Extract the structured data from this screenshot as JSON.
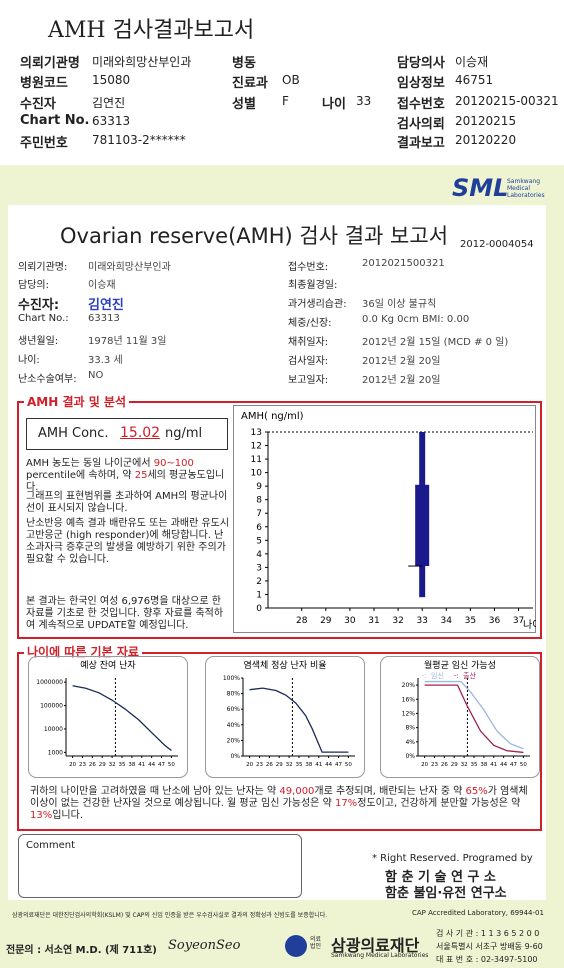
{
  "header": {
    "title": "AMH 검사결과보고서"
  },
  "patient": {
    "hospital_label": "의뢰기관명",
    "hospital": "미래와희망산부인과",
    "code_label": "병원코드",
    "code": "15080",
    "name_label": "수진자",
    "name": "김연진",
    "chart_label": "Chart No.",
    "chart": "63313",
    "id_label": "주민번호",
    "id": "781103-2******",
    "ward_label": "병동",
    "dept_label": "진료과",
    "dept": "OB",
    "sex_label": "성별",
    "sex": "F",
    "age_label": "나이",
    "age": "33",
    "doctor_label": "담당의사",
    "doctor": "이승재",
    "clinic_label": "임상정보",
    "clinic": "46751",
    "receipt_label": "접수번호",
    "receipt": "20120215-00321",
    "req_label": "검사의뢰",
    "req": "20120215",
    "result_label": "결과보고",
    "result": "20120220"
  },
  "report": {
    "brand": "SML",
    "brand_sub": "Samkwang Medical Laboratories",
    "title": "Ovarian reserve(AMH) 검사 결과 보고서",
    "number": "2012-0004054",
    "left": [
      {
        "label": "의뢰기관명:",
        "value": "미래와희망산부인과"
      },
      {
        "label": "담당의:",
        "value": "이승재"
      },
      {
        "label": "수진자:",
        "value": "김연진"
      },
      {
        "label": "Chart No.:",
        "value": "63313"
      },
      {
        "label": "생년월일:",
        "value": "1978년 11월 3일"
      },
      {
        "label": "나이:",
        "value": "33.3 세"
      },
      {
        "label": "난소수술여부:",
        "value": "NO"
      }
    ],
    "right": [
      {
        "label": "접수번호:",
        "value": "2012021500321"
      },
      {
        "label": "최종월경일:"
      },
      {
        "label": "과거생리습관:",
        "value": "36일 이상 불규칙"
      },
      {
        "label": "체중/신장:",
        "value": "0.0 Kg      0cm    BMI:  0.00"
      },
      {
        "label": "채취일자:",
        "value": "2012년 2월 15일   (MCD #  0 일)"
      },
      {
        "label": "검사일자:",
        "value": "2012년 2월 20일"
      },
      {
        "label": "보고일자:",
        "value": "2012년 2월 20일"
      }
    ]
  },
  "amh": {
    "section": "AMH 결과 및 분석",
    "conc_label": "AMH Conc.",
    "conc": "15.02",
    "unit": "ng/ml",
    "p1": [
      "AMH 농도는 동일 나이군에서 ",
      "90~100",
      "percentile에 속하며, 약 ",
      "25",
      "세의 평균농도입니다."
    ],
    "p2": "그래프의 표현범위를 초과하여 AMH의 평균나이선이 표시되지 않습니다.",
    "p3": "난소반응 예측 결과 배란유도 또는 과배란 유도시 고반응군 (high responder)에 해당합니다. 난소과자극 증후군의 발생을 예방하기 위한 주의가 필요할 수 있습니다.",
    "p4": "본 결과는 한국인 여성 6,976명을 대상으로 한 자료를 기초로 한 것입니다. 향후 자료를 축적하여 계속적으로 UPDATE할 예정입니다."
  },
  "amh_chart": {
    "type": "box",
    "y_label": "AMH( ng/ml)",
    "x_label": "나이",
    "xlim": [
      26.6,
      37.6
    ],
    "xticks": [
      28,
      29,
      30,
      31,
      32,
      33,
      34,
      35,
      36,
      37
    ],
    "ylim": [
      0,
      13
    ],
    "yticks": [
      0,
      1,
      2,
      3,
      4,
      5,
      6,
      7,
      8,
      9,
      10,
      11,
      12,
      13
    ],
    "x": 33,
    "low": 0.8,
    "q1": 3.1,
    "q3": 9.1,
    "high": 13,
    "color": "#1a1a8c"
  },
  "age_section": "나이에 따른 기본 자료",
  "age_charts": [
    {
      "type": "line",
      "title": "예상 잔여 난자",
      "log": true,
      "xlim": [
        18,
        52
      ],
      "xticks": [
        20,
        23,
        26,
        29,
        32,
        35,
        38,
        41,
        44,
        47,
        50
      ],
      "ylim": [
        700,
        1500000
      ],
      "yticks": [
        1000,
        10000,
        100000,
        1000000
      ],
      "marker": 33,
      "series": [
        {
          "color": "#1a2a5a",
          "x": [
            20,
            24,
            28,
            32,
            36,
            40,
            44,
            48,
            50
          ],
          "values": [
            700000,
            550000,
            350000,
            170000,
            70000,
            25000,
            7000,
            2000,
            1200
          ]
        }
      ]
    },
    {
      "type": "line",
      "title": "염색체 정상 난자 비율",
      "log": false,
      "xlim": [
        18,
        52
      ],
      "xticks": [
        20,
        23,
        26,
        29,
        32,
        35,
        38,
        41,
        44,
        47,
        50
      ],
      "ylim": [
        0,
        100
      ],
      "yticks": [
        {
          "value": 0,
          "label": "0%"
        },
        {
          "value": 20,
          "label": "20%"
        },
        {
          "value": 40,
          "label": "40%"
        },
        {
          "value": 60,
          "label": "60%"
        },
        {
          "value": 80,
          "label": "80%"
        },
        {
          "value": 100,
          "label": "100%"
        }
      ],
      "marker": 33,
      "series": [
        {
          "color": "#1a2a5a",
          "x": [
            20,
            24,
            28,
            31,
            34,
            37,
            39,
            41,
            42,
            45,
            50
          ],
          "values": [
            85,
            87,
            84,
            78,
            68,
            52,
            35,
            15,
            5,
            5,
            5
          ]
        }
      ]
    },
    {
      "type": "line",
      "title": "월평균 임신 가능성",
      "log": false,
      "xlim": [
        18,
        52
      ],
      "xticks": [
        20,
        23,
        26,
        29,
        32,
        35,
        38,
        41,
        44,
        47,
        50
      ],
      "ylim": [
        0,
        22
      ],
      "yticks": [
        {
          "value": 0,
          "label": "0%"
        },
        {
          "value": 4,
          "label": "4%"
        },
        {
          "value": 8,
          "label": "8%"
        },
        {
          "value": 12,
          "label": "12%"
        },
        {
          "value": 16,
          "label": "16%"
        },
        {
          "value": 20,
          "label": "20%"
        }
      ],
      "marker": 33,
      "legend_marker": "-:",
      "series": [
        {
          "name": "임신",
          "color": "#9ab8e0",
          "x": [
            20,
            31,
            34,
            38,
            42,
            46,
            50
          ],
          "values": [
            21,
            21,
            18,
            13,
            7,
            3.5,
            2
          ]
        },
        {
          "name": "출산",
          "color": "#a0205a",
          "x": [
            20,
            30,
            33,
            37,
            41,
            45,
            50
          ],
          "values": [
            20,
            20,
            14,
            7,
            3,
            1.5,
            1
          ]
        }
      ]
    }
  ],
  "summary": [
    "귀하의 나이만을 고려하였을 때 난소에 남아 있는 난자는 약 ",
    "49,000",
    "개로 추정되며, 배란되는 난자 중 약 ",
    "65%",
    "가 염색체이상이 없는 건강한 난자일 것으로 예상됩니다. 월 평균 임신 가능성은 약 ",
    "17%",
    "정도이고, 건강하게 분만할 가능성은 약 ",
    "13%",
    "입니다."
  ],
  "comment": "Comment",
  "rights": {
    "line1": "* Right Reserved. Programed by",
    "line2": "함 춘 기 술 연 구 소",
    "line3": "함춘 불임·유전 연구소"
  },
  "footer": {
    "cert": "삼광의료재단은 대한진단검사의학회(KSLM) 및 CAP의 신임 인증을 받은 우수검사실로 결과의 정확성과 신빙도를 보증합니다.",
    "cap": "CAP  Accredited  Laboratory,  69944-01",
    "doctor": "전문의 : 서소연 M.D. (제 711호)",
    "sign": "SoyeonSeo",
    "corp": "의료법인",
    "org": "삼광의료재단",
    "org_en": "Samkwang Medical Laboratories",
    "lab": "검 사 기 관 : 1 1 3 6 5 2 0 0",
    "addr": "서울특별시 서초구 방배동 9-60",
    "tel": "대 표 번 호 : 02-3497-5100"
  }
}
